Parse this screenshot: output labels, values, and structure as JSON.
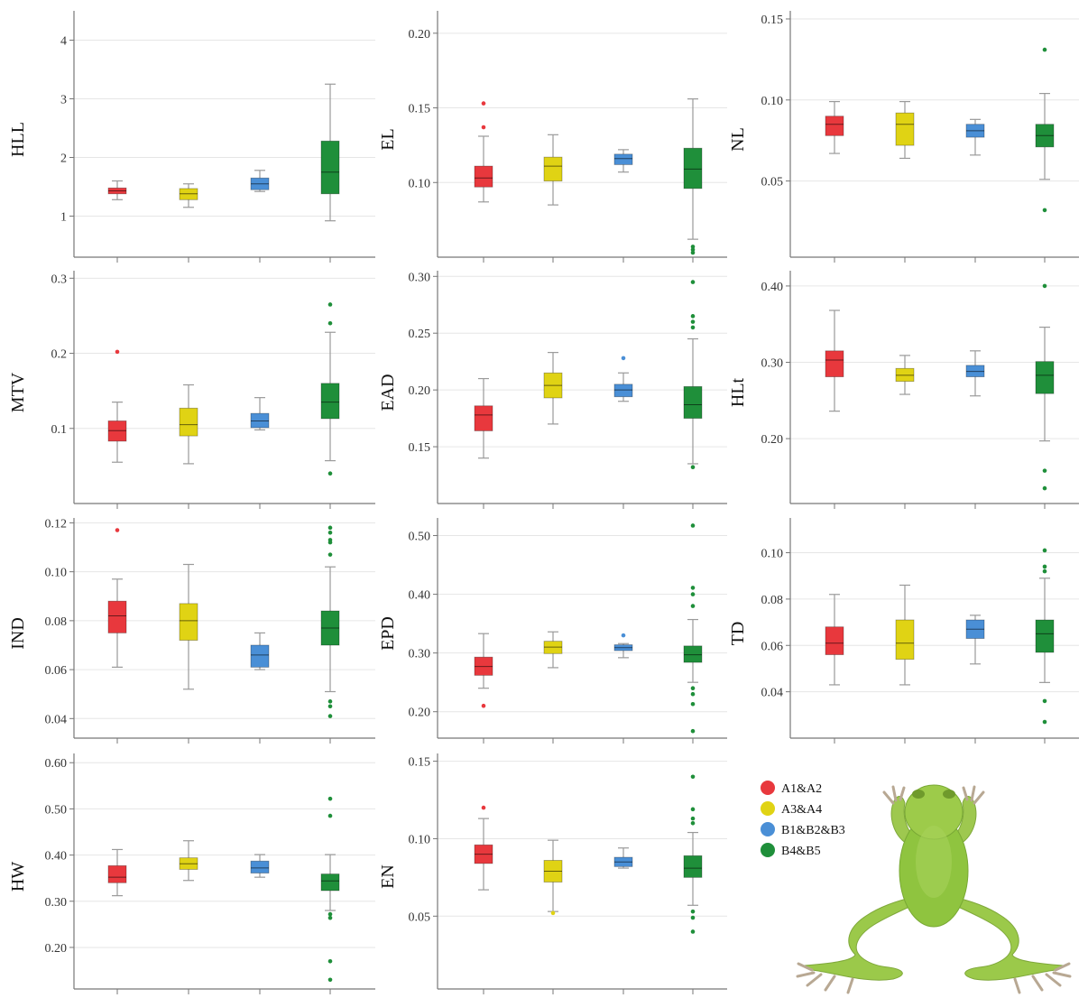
{
  "colors": {
    "A1&A2": "#e8383d",
    "A3&A4": "#e0d314",
    "B1&B2&B3": "#4a8fd6",
    "B4&B5": "#1f8f3a",
    "grid": "#e6e6e6",
    "axis": "#777777"
  },
  "legend": {
    "items": [
      "A1&A2",
      "A3&A4",
      "B1&B2&B3",
      "B4&B5"
    ],
    "image": "frog-photo"
  },
  "chart_data": [
    {
      "type": "box",
      "ylabel": "HLL",
      "ylim": [
        0.3,
        4.5
      ],
      "yticks": [
        1,
        2,
        3,
        4
      ],
      "ytick_labels": [
        "1",
        "2",
        "3",
        "4"
      ],
      "series": [
        {
          "name": "A1&A2",
          "whisker_low": 1.28,
          "q1": 1.38,
          "median": 1.43,
          "q3": 1.48,
          "whisker_high": 1.6,
          "outliers": []
        },
        {
          "name": "A3&A4",
          "whisker_low": 1.15,
          "q1": 1.28,
          "median": 1.38,
          "q3": 1.47,
          "whisker_high": 1.55,
          "outliers": []
        },
        {
          "name": "B1&B2&B3",
          "whisker_low": 1.42,
          "q1": 1.45,
          "median": 1.55,
          "q3": 1.65,
          "whisker_high": 1.78,
          "outliers": []
        },
        {
          "name": "B4&B5",
          "whisker_low": 0.92,
          "q1": 1.38,
          "median": 1.75,
          "q3": 2.28,
          "whisker_high": 3.25,
          "outliers": []
        }
      ]
    },
    {
      "type": "box",
      "ylabel": "EL",
      "ylim": [
        0.05,
        0.215
      ],
      "yticks": [
        0.1,
        0.15,
        0.2
      ],
      "ytick_labels": [
        "0.10",
        "0.15",
        "0.20"
      ],
      "series": [
        {
          "name": "A1&A2",
          "whisker_low": 0.087,
          "q1": 0.097,
          "median": 0.103,
          "q3": 0.111,
          "whisker_high": 0.131,
          "outliers": [
            0.137,
            0.153
          ]
        },
        {
          "name": "A3&A4",
          "whisker_low": 0.085,
          "q1": 0.101,
          "median": 0.111,
          "q3": 0.117,
          "whisker_high": 0.132,
          "outliers": []
        },
        {
          "name": "B1&B2&B3",
          "whisker_low": 0.107,
          "q1": 0.112,
          "median": 0.116,
          "q3": 0.119,
          "whisker_high": 0.122,
          "outliers": []
        },
        {
          "name": "B4&B5",
          "whisker_low": 0.062,
          "q1": 0.096,
          "median": 0.109,
          "q3": 0.123,
          "whisker_high": 0.156,
          "outliers": [
            0.057,
            0.055,
            0.053
          ]
        }
      ]
    },
    {
      "type": "box",
      "ylabel": "NL",
      "ylim": [
        0.003,
        0.155
      ],
      "yticks": [
        0.05,
        0.1,
        0.15
      ],
      "ytick_labels": [
        "0.05",
        "0.10",
        "0.15"
      ],
      "series": [
        {
          "name": "A1&A2",
          "whisker_low": 0.067,
          "q1": 0.078,
          "median": 0.085,
          "q3": 0.09,
          "whisker_high": 0.099,
          "outliers": []
        },
        {
          "name": "A3&A4",
          "whisker_low": 0.064,
          "q1": 0.072,
          "median": 0.085,
          "q3": 0.092,
          "whisker_high": 0.099,
          "outliers": []
        },
        {
          "name": "B1&B2&B3",
          "whisker_low": 0.066,
          "q1": 0.077,
          "median": 0.081,
          "q3": 0.085,
          "whisker_high": 0.088,
          "outliers": []
        },
        {
          "name": "B4&B5",
          "whisker_low": 0.051,
          "q1": 0.071,
          "median": 0.078,
          "q3": 0.085,
          "whisker_high": 0.104,
          "outliers": [
            0.131,
            0.032
          ]
        }
      ]
    },
    {
      "type": "box",
      "ylabel": "MTV",
      "ylim": [
        0.0,
        0.31
      ],
      "yticks": [
        0.1,
        0.2,
        0.3
      ],
      "ytick_labels": [
        "0.1",
        "0.2",
        "0.3"
      ],
      "series": [
        {
          "name": "A1&A2",
          "whisker_low": 0.055,
          "q1": 0.083,
          "median": 0.097,
          "q3": 0.11,
          "whisker_high": 0.135,
          "outliers": [
            0.202
          ]
        },
        {
          "name": "A3&A4",
          "whisker_low": 0.053,
          "q1": 0.09,
          "median": 0.105,
          "q3": 0.127,
          "whisker_high": 0.158,
          "outliers": []
        },
        {
          "name": "B1&B2&B3",
          "whisker_low": 0.098,
          "q1": 0.101,
          "median": 0.11,
          "q3": 0.12,
          "whisker_high": 0.141,
          "outliers": []
        },
        {
          "name": "B4&B5",
          "whisker_low": 0.057,
          "q1": 0.113,
          "median": 0.135,
          "q3": 0.16,
          "whisker_high": 0.228,
          "outliers": [
            0.265,
            0.24,
            0.04
          ]
        }
      ]
    },
    {
      "type": "box",
      "ylabel": "EAD",
      "ylim": [
        0.1,
        0.305
      ],
      "yticks": [
        0.15,
        0.2,
        0.25,
        0.3
      ],
      "ytick_labels": [
        "0.15",
        "0.20",
        "0.25",
        "0.30"
      ],
      "series": [
        {
          "name": "A1&A2",
          "whisker_low": 0.14,
          "q1": 0.164,
          "median": 0.178,
          "q3": 0.186,
          "whisker_high": 0.21,
          "outliers": []
        },
        {
          "name": "A3&A4",
          "whisker_low": 0.17,
          "q1": 0.193,
          "median": 0.204,
          "q3": 0.215,
          "whisker_high": 0.233,
          "outliers": []
        },
        {
          "name": "B1&B2&B3",
          "whisker_low": 0.19,
          "q1": 0.194,
          "median": 0.2,
          "q3": 0.205,
          "whisker_high": 0.215,
          "outliers": [
            0.228
          ]
        },
        {
          "name": "B4&B5",
          "whisker_low": 0.135,
          "q1": 0.175,
          "median": 0.187,
          "q3": 0.203,
          "whisker_high": 0.245,
          "outliers": [
            0.295,
            0.265,
            0.26,
            0.255,
            0.132
          ]
        }
      ]
    },
    {
      "type": "box",
      "ylabel": "HLt",
      "ylim": [
        0.115,
        0.42
      ],
      "yticks": [
        0.2,
        0.3,
        0.4
      ],
      "ytick_labels": [
        "0.20",
        "0.30",
        "0.40"
      ],
      "series": [
        {
          "name": "A1&A2",
          "whisker_low": 0.236,
          "q1": 0.281,
          "median": 0.303,
          "q3": 0.315,
          "whisker_high": 0.368,
          "outliers": []
        },
        {
          "name": "A3&A4",
          "whisker_low": 0.258,
          "q1": 0.275,
          "median": 0.283,
          "q3": 0.292,
          "whisker_high": 0.309,
          "outliers": []
        },
        {
          "name": "B1&B2&B3",
          "whisker_low": 0.256,
          "q1": 0.281,
          "median": 0.288,
          "q3": 0.296,
          "whisker_high": 0.315,
          "outliers": []
        },
        {
          "name": "B4&B5",
          "whisker_low": 0.197,
          "q1": 0.259,
          "median": 0.283,
          "q3": 0.301,
          "whisker_high": 0.346,
          "outliers": [
            0.4,
            0.158,
            0.135
          ]
        }
      ]
    },
    {
      "type": "box",
      "ylabel": "IND",
      "ylim": [
        0.032,
        0.122
      ],
      "yticks": [
        0.04,
        0.06,
        0.08,
        0.1,
        0.12
      ],
      "ytick_labels": [
        "0.04",
        "0.06",
        "0.08",
        "0.10",
        "0.12"
      ],
      "series": [
        {
          "name": "A1&A2",
          "whisker_low": 0.061,
          "q1": 0.075,
          "median": 0.082,
          "q3": 0.088,
          "whisker_high": 0.097,
          "outliers": [
            0.117
          ]
        },
        {
          "name": "A3&A4",
          "whisker_low": 0.052,
          "q1": 0.072,
          "median": 0.08,
          "q3": 0.087,
          "whisker_high": 0.103,
          "outliers": []
        },
        {
          "name": "B1&B2&B3",
          "whisker_low": 0.06,
          "q1": 0.061,
          "median": 0.066,
          "q3": 0.07,
          "whisker_high": 0.075,
          "outliers": []
        },
        {
          "name": "B4&B5",
          "whisker_low": 0.051,
          "q1": 0.07,
          "median": 0.077,
          "q3": 0.084,
          "whisker_high": 0.102,
          "outliers": [
            0.118,
            0.116,
            0.113,
            0.112,
            0.107,
            0.047,
            0.045,
            0.041
          ]
        }
      ]
    },
    {
      "type": "box",
      "ylabel": "EPD",
      "ylim": [
        0.155,
        0.53
      ],
      "yticks": [
        0.2,
        0.3,
        0.4,
        0.5
      ],
      "ytick_labels": [
        "0.20",
        "0.30",
        "0.40",
        "0.50"
      ],
      "series": [
        {
          "name": "A1&A2",
          "whisker_low": 0.24,
          "q1": 0.262,
          "median": 0.277,
          "q3": 0.293,
          "whisker_high": 0.333,
          "outliers": [
            0.21
          ]
        },
        {
          "name": "A3&A4",
          "whisker_low": 0.275,
          "q1": 0.299,
          "median": 0.31,
          "q3": 0.32,
          "whisker_high": 0.336,
          "outliers": []
        },
        {
          "name": "B1&B2&B3",
          "whisker_low": 0.292,
          "q1": 0.304,
          "median": 0.309,
          "q3": 0.314,
          "whisker_high": 0.316,
          "outliers": [
            0.33
          ]
        },
        {
          "name": "B4&B5",
          "whisker_low": 0.25,
          "q1": 0.284,
          "median": 0.297,
          "q3": 0.312,
          "whisker_high": 0.357,
          "outliers": [
            0.517,
            0.411,
            0.4,
            0.38,
            0.24,
            0.23,
            0.213,
            0.167
          ]
        }
      ]
    },
    {
      "type": "box",
      "ylabel": "TD",
      "ylim": [
        0.02,
        0.115
      ],
      "yticks": [
        0.04,
        0.06,
        0.08,
        0.1
      ],
      "ytick_labels": [
        "0.04",
        "0.06",
        "0.08",
        "0.10"
      ],
      "series": [
        {
          "name": "A1&A2",
          "whisker_low": 0.043,
          "q1": 0.056,
          "median": 0.061,
          "q3": 0.068,
          "whisker_high": 0.082,
          "outliers": []
        },
        {
          "name": "A3&A4",
          "whisker_low": 0.043,
          "q1": 0.054,
          "median": 0.061,
          "q3": 0.071,
          "whisker_high": 0.086,
          "outliers": []
        },
        {
          "name": "B1&B2&B3",
          "whisker_low": 0.052,
          "q1": 0.063,
          "median": 0.067,
          "q3": 0.071,
          "whisker_high": 0.073,
          "outliers": []
        },
        {
          "name": "B4&B5",
          "whisker_low": 0.044,
          "q1": 0.057,
          "median": 0.065,
          "q3": 0.071,
          "whisker_high": 0.089,
          "outliers": [
            0.101,
            0.094,
            0.092,
            0.036,
            0.027
          ]
        }
      ]
    },
    {
      "type": "box",
      "ylabel": "HW",
      "ylim": [
        0.11,
        0.62
      ],
      "yticks": [
        0.2,
        0.3,
        0.4,
        0.5,
        0.6
      ],
      "ytick_labels": [
        "0.20",
        "0.30",
        "0.40",
        "0.50",
        "0.60"
      ],
      "series": [
        {
          "name": "A1&A2",
          "whisker_low": 0.312,
          "q1": 0.34,
          "median": 0.352,
          "q3": 0.377,
          "whisker_high": 0.412,
          "outliers": []
        },
        {
          "name": "A3&A4",
          "whisker_low": 0.345,
          "q1": 0.369,
          "median": 0.381,
          "q3": 0.394,
          "whisker_high": 0.431,
          "outliers": []
        },
        {
          "name": "B1&B2&B3",
          "whisker_low": 0.352,
          "q1": 0.361,
          "median": 0.372,
          "q3": 0.387,
          "whisker_high": 0.401,
          "outliers": []
        },
        {
          "name": "B4&B5",
          "whisker_low": 0.28,
          "q1": 0.323,
          "median": 0.344,
          "q3": 0.359,
          "whisker_high": 0.401,
          "outliers": [
            0.522,
            0.485,
            0.272,
            0.264,
            0.17,
            0.13
          ]
        }
      ]
    },
    {
      "type": "box",
      "ylabel": "EN",
      "ylim": [
        0.003,
        0.155
      ],
      "yticks": [
        0.05,
        0.1,
        0.15
      ],
      "ytick_labels": [
        "0.05",
        "0.10",
        "0.15"
      ],
      "series": [
        {
          "name": "A1&A2",
          "whisker_low": 0.067,
          "q1": 0.084,
          "median": 0.09,
          "q3": 0.096,
          "whisker_high": 0.113,
          "outliers": [
            0.12
          ]
        },
        {
          "name": "A3&A4",
          "whisker_low": 0.053,
          "q1": 0.072,
          "median": 0.079,
          "q3": 0.086,
          "whisker_high": 0.099,
          "outliers": [
            0.052
          ]
        },
        {
          "name": "B1&B2&B3",
          "whisker_low": 0.081,
          "q1": 0.082,
          "median": 0.085,
          "q3": 0.088,
          "whisker_high": 0.094,
          "outliers": []
        },
        {
          "name": "B4&B5",
          "whisker_low": 0.057,
          "q1": 0.075,
          "median": 0.081,
          "q3": 0.089,
          "whisker_high": 0.104,
          "outliers": [
            0.14,
            0.119,
            0.113,
            0.11,
            0.053,
            0.049,
            0.04
          ]
        }
      ]
    }
  ]
}
